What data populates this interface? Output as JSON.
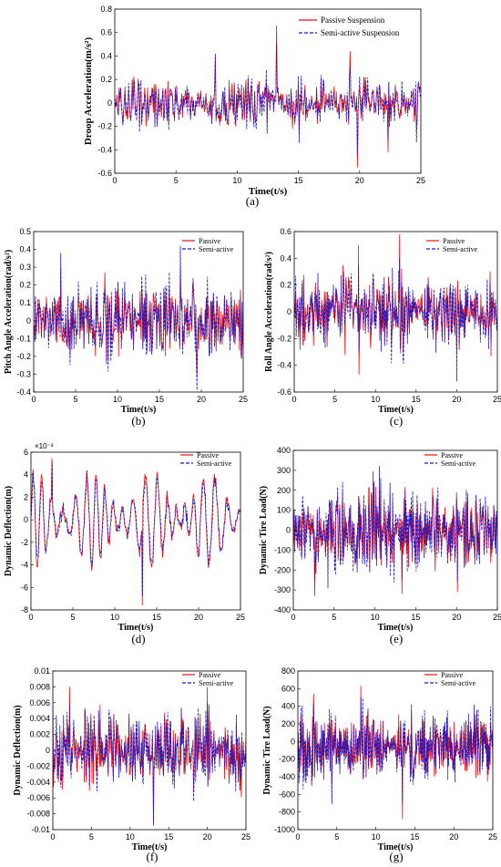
{
  "colors": {
    "passive": "#ee1111",
    "semi_active": "#1a1acc"
  },
  "chart_data": [
    {
      "id": "a",
      "type": "line",
      "caption": "(a)",
      "xlabel": "Time(t/s)",
      "ylabel": "Droop  Acceleration(m/s²)",
      "xlim": [
        0,
        25
      ],
      "ylim": [
        -0.6,
        0.8
      ],
      "xticks": [
        0,
        5,
        10,
        15,
        20,
        25
      ],
      "yticks": [
        -0.6,
        -0.4,
        -0.2,
        0,
        0.2,
        0.4,
        0.6,
        0.8
      ],
      "legend": [
        "Passive Suspension",
        "Semi-active Suspension"
      ],
      "legend_position": "top-right",
      "samples": 420,
      "amp": 0.13,
      "bias": 0.0,
      "seed": 11,
      "spikes": [
        {
          "x": 13.2,
          "passive": 0.66,
          "semi": 0.5
        },
        {
          "x": 19.8,
          "passive": -0.55,
          "semi": -0.45
        },
        {
          "x": 8.2,
          "passive": 0.4,
          "semi": 0.42
        },
        {
          "x": 22.3,
          "passive": -0.42,
          "semi": -0.3
        },
        {
          "x": 19.2,
          "passive": 0.44,
          "semi": 0.3
        }
      ]
    },
    {
      "id": "b",
      "type": "line",
      "caption": "(b)",
      "xlabel": "Time(t/s)",
      "ylabel": "Pitch Angle Acceleration(rad/s²)",
      "xlim": [
        0,
        25
      ],
      "ylim": [
        -0.4,
        0.5
      ],
      "xticks": [
        0,
        5,
        10,
        15,
        20,
        25
      ],
      "yticks": [
        -0.4,
        -0.3,
        -0.2,
        -0.1,
        0,
        0.1,
        0.2,
        0.3,
        0.4,
        0.5
      ],
      "legend": [
        "Passive",
        "Semi-active"
      ],
      "legend_position": "top-right",
      "samples": 380,
      "amp": 0.15,
      "bias": 0.0,
      "seed": 23,
      "spikes": [
        {
          "x": 17.5,
          "passive": 0.3,
          "semi": 0.42
        },
        {
          "x": 19.5,
          "passive": -0.3,
          "semi": -0.39
        },
        {
          "x": 3.2,
          "passive": 0.3,
          "semi": 0.38
        }
      ]
    },
    {
      "id": "c",
      "type": "line",
      "caption": "(c)",
      "xlabel": "Time(t/s)",
      "ylabel": "Roll Angle Acceleration(rad/s²)",
      "xlim": [
        0,
        25
      ],
      "ylim": [
        -0.6,
        0.6
      ],
      "xticks": [
        0,
        5,
        10,
        15,
        20,
        25
      ],
      "yticks": [
        -0.6,
        -0.4,
        -0.2,
        0,
        0.2,
        0.4,
        0.6
      ],
      "legend": [
        "Passive",
        "Semi-active"
      ],
      "legend_position": "top-right",
      "samples": 420,
      "amp": 0.18,
      "bias": 0.0,
      "seed": 37,
      "spikes": [
        {
          "x": 13.0,
          "passive": 0.58,
          "semi": 0.4
        },
        {
          "x": 7.9,
          "passive": 0.5,
          "semi": 0.35
        },
        {
          "x": 20.0,
          "passive": -0.3,
          "semi": -0.52
        },
        {
          "x": 8.0,
          "passive": -0.47,
          "semi": -0.3
        }
      ]
    },
    {
      "id": "d",
      "type": "line",
      "caption": "(d)",
      "xlabel": "Time(t/s)",
      "ylabel": "Dynamic Deflection(m)",
      "exponent_label": "×10⁻³",
      "xlim": [
        0,
        25
      ],
      "ylim": [
        -8,
        6
      ],
      "xticks": [
        0,
        5,
        10,
        15,
        20,
        25
      ],
      "yticks": [
        -8,
        -6,
        -4,
        -2,
        0,
        2,
        4,
        6
      ],
      "legend": [
        "Passive",
        "Semi-active"
      ],
      "legend_position": "top-right",
      "samples": 320,
      "amp": 4.2,
      "bias": 0.0,
      "seed": 5,
      "smooth": true,
      "spikes": [
        {
          "x": 13.3,
          "passive": -7.6,
          "semi": -6.8
        },
        {
          "x": 2.5,
          "passive": 5.5,
          "semi": 5.2
        }
      ]
    },
    {
      "id": "e",
      "type": "line",
      "caption": "(e)",
      "xlabel": "Time(t/s)",
      "ylabel": "Dynamic Tire Load(N)",
      "xlim": [
        0,
        25
      ],
      "ylim": [
        -400,
        400
      ],
      "xticks": [
        0,
        5,
        10,
        15,
        20,
        25
      ],
      "yticks": [
        -400,
        -300,
        -200,
        -100,
        0,
        100,
        200,
        300,
        400
      ],
      "legend": [
        "Passive",
        "Semi-active"
      ],
      "legend_position": "top-right",
      "samples": 460,
      "amp": 130,
      "bias": 0.0,
      "seed": 51,
      "spikes": [
        {
          "x": 2.6,
          "passive": -330,
          "semi": -250
        },
        {
          "x": 13.3,
          "passive": -320,
          "semi": -250
        },
        {
          "x": 20.1,
          "passive": -310,
          "semi": -260
        }
      ]
    },
    {
      "id": "f",
      "type": "line",
      "caption": "(f)",
      "xlabel": "Time(t/s)",
      "ylabel": "Dynamic Deflection(m)",
      "xlim": [
        0,
        25
      ],
      "ylim": [
        -0.01,
        0.01
      ],
      "xticks": [
        0,
        5,
        10,
        15,
        20,
        25
      ],
      "yticks": [
        -0.01,
        -0.008,
        -0.006,
        -0.004,
        -0.002,
        0,
        0.002,
        0.004,
        0.006,
        0.008,
        0.01
      ],
      "legend": [
        "Passive",
        "Semi-active"
      ],
      "legend_position": "top-right",
      "samples": 380,
      "amp": 0.0032,
      "bias": 0.0,
      "seed": 73,
      "spikes": [
        {
          "x": 13.0,
          "passive": -0.009,
          "semi": -0.0095
        },
        {
          "x": 2.2,
          "passive": 0.008,
          "semi": 0.006
        },
        {
          "x": 20.0,
          "passive": 0.008,
          "semi": 0.006
        }
      ]
    },
    {
      "id": "g",
      "type": "line",
      "caption": "(g)",
      "xlabel": "Time(t/s)",
      "ylabel": "Dynamic Tire Load(N)",
      "xlim": [
        0,
        25
      ],
      "ylim": [
        -1000,
        800
      ],
      "xticks": [
        0,
        5,
        10,
        15,
        20,
        25
      ],
      "yticks": [
        -1000,
        -800,
        -600,
        -400,
        -200,
        0,
        200,
        400,
        600,
        800
      ],
      "legend": [
        "Passive",
        "Semi-active"
      ],
      "legend_position": "top-right",
      "samples": 520,
      "amp": 240,
      "bias": -60,
      "seed": 91,
      "spikes": [
        {
          "x": 13.4,
          "passive": -880,
          "semi": -700
        },
        {
          "x": 8.1,
          "passive": 630,
          "semi": 500
        },
        {
          "x": 2.0,
          "passive": 540,
          "semi": 440
        }
      ]
    }
  ]
}
